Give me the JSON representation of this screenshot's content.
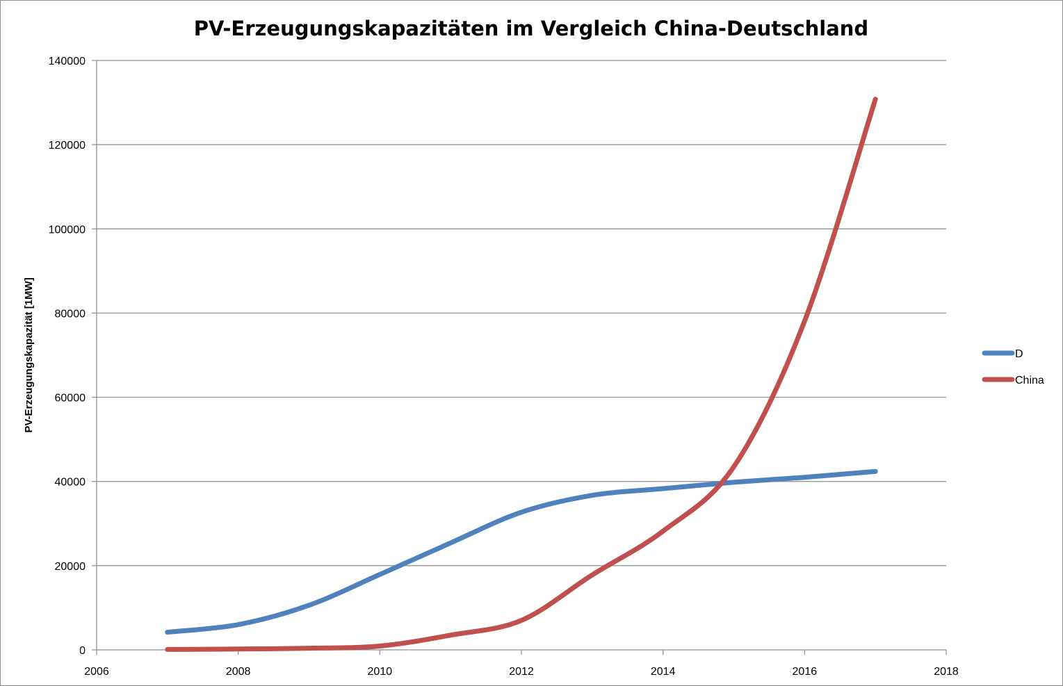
{
  "chart_data": {
    "type": "line",
    "title": "PV-Erzeugungskapazitäten im Vergleich China-Deutschland",
    "xlabel": "",
    "ylabel": "PV-Erzeugungskapazität  [1MW]",
    "xlim": [
      2006,
      2018
    ],
    "ylim": [
      0,
      140000
    ],
    "x_ticks": [
      2006,
      2008,
      2010,
      2012,
      2014,
      2016,
      2018
    ],
    "y_ticks": [
      0,
      20000,
      40000,
      60000,
      80000,
      100000,
      120000,
      140000
    ],
    "grid": true,
    "legend_position": "right",
    "x": [
      2007,
      2008,
      2009,
      2010,
      2011,
      2012,
      2013,
      2014,
      2015,
      2016,
      2017
    ],
    "series": [
      {
        "name": "D",
        "color": "#4f81bd",
        "values": [
          4200,
          6000,
          10600,
          17900,
          25400,
          32700,
          36700,
          38300,
          39800,
          41000,
          42400
        ]
      },
      {
        "name": "China",
        "color": "#c0504d",
        "values": [
          100,
          200,
          400,
          900,
          3500,
          7000,
          17800,
          28200,
          43500,
          78100,
          130800
        ]
      }
    ]
  }
}
